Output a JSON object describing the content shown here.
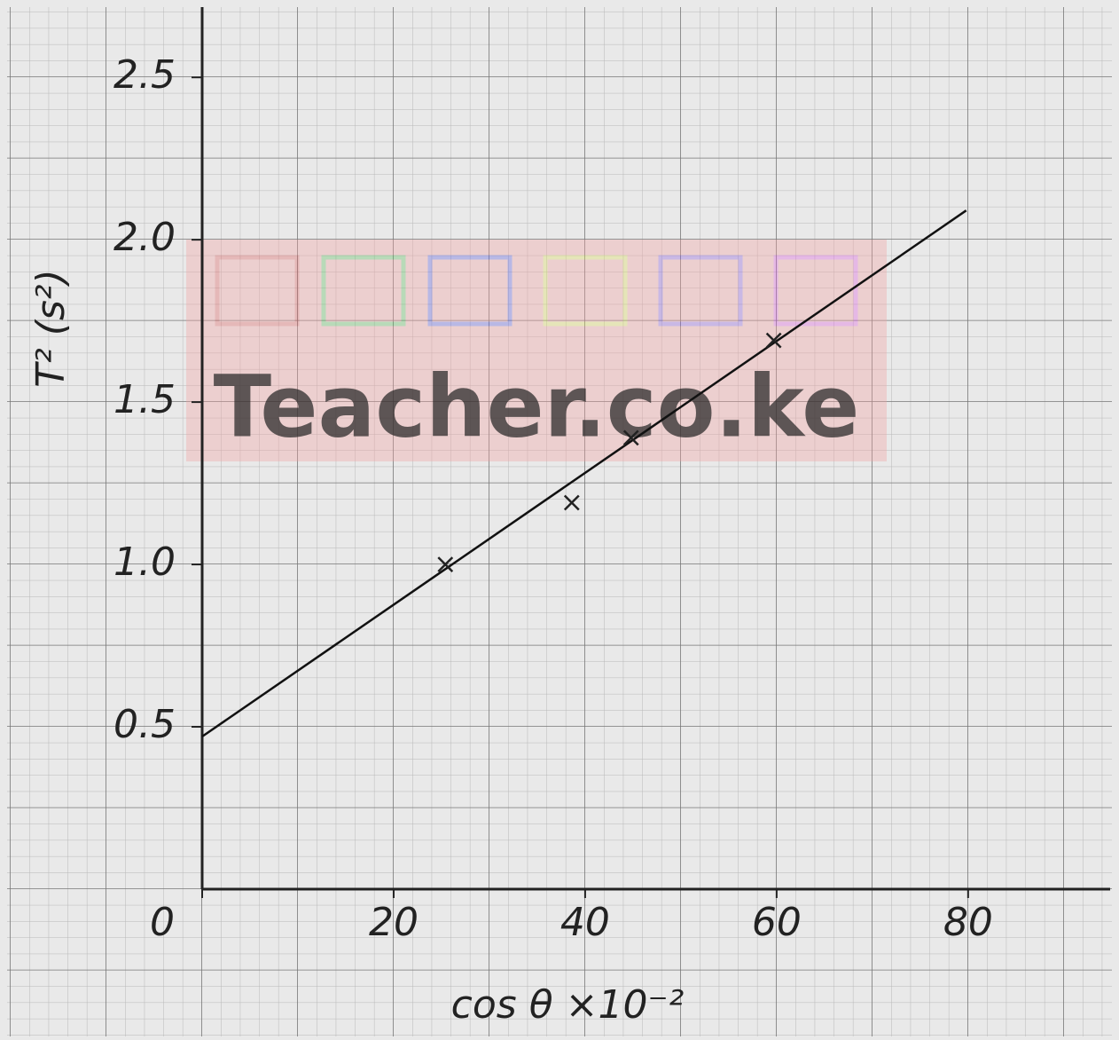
{
  "chart_data": {
    "type": "scatter",
    "x_label": "cos θ ×10⁻²",
    "y_label": "T² (s²)",
    "watermark": "Teacher.co.ke",
    "xlim": [
      0,
      94
    ],
    "ylim": [
      0,
      2.7
    ],
    "xticks": [
      0,
      20,
      40,
      60,
      80
    ],
    "yticks": [
      {
        "value": 0.5,
        "label": "0.5"
      },
      {
        "value": 1,
        "label": "1.0"
      },
      1.5,
      {
        "value": 2,
        "label": "2.0"
      },
      2.5
    ],
    "grid": true,
    "series": [
      {
        "color": "#222",
        "x": [
          25.4,
          38.6,
          44.8,
          59.7
        ],
        "y": [
          1.0,
          1.19,
          1.39,
          1.69
        ]
      }
    ],
    "fit_line": {
      "color": "#111",
      "x": [
        0,
        79.8
      ],
      "y": [
        0.47,
        2.09
      ]
    }
  }
}
